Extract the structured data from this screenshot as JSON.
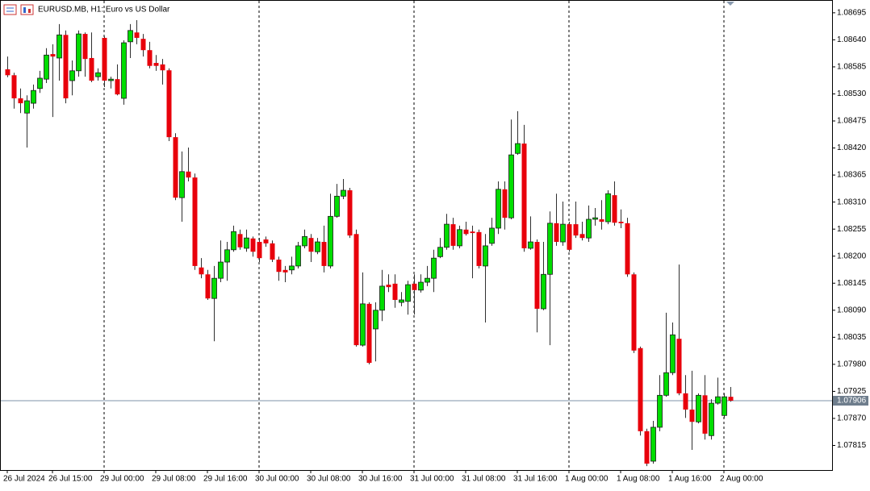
{
  "chart_data": {
    "type": "candlestick",
    "title": "EURUSD.MB, H1:  Euro vs US Dollar",
    "bull_color": "#00dd00",
    "bear_color": "#e8000b",
    "wick_color": "#303030",
    "period_separators": true,
    "open": [
      1.0858,
      1.08568,
      1.08521,
      1.08491,
      1.08511,
      1.08541,
      1.0856,
      1.08611,
      1.08603,
      1.0865,
      1.08557,
      1.08577,
      1.08652,
      1.08603,
      1.08565,
      1.08644,
      1.08557,
      1.0856,
      1.08521,
      1.08636,
      1.08655,
      1.08642,
      1.08619,
      1.08593,
      1.0859,
      1.08578,
      1.08442,
      1.08319,
      1.08372,
      1.0836,
      1.08177,
      1.08163,
      1.08114,
      1.08155,
      1.08188,
      1.08213,
      1.08245,
      1.08216,
      1.08236,
      1.08229,
      1.08234,
      1.08226,
      1.08193,
      1.08172,
      1.08172,
      1.0818,
      1.08221,
      1.08237,
      1.08209,
      1.08229,
      1.0818,
      1.08281,
      1.08322,
      1.08334,
      1.08245,
      1.08019,
      1.08103,
      1.08052,
      1.0809,
      1.08142,
      1.08144,
      1.08106,
      1.08108,
      1.08144,
      1.08131,
      1.08147,
      1.08155,
      1.08199,
      1.08218,
      1.08265,
      1.08221,
      1.08254,
      1.0825,
      1.08249,
      1.0818,
      1.08226,
      1.08257,
      1.08336,
      1.08278,
      1.08409,
      1.08429,
      1.08216,
      1.08229,
      1.08093,
      1.08163,
      1.08267,
      1.08229,
      1.08265,
      1.08265,
      1.08245,
      1.08237,
      1.08275,
      1.08275,
      1.0827,
      1.08324,
      1.0827,
      1.08267,
      1.08163,
      1.08013,
      1.07844,
      1.07783,
      1.07852,
      1.07917,
      1.07963,
      1.08032,
      1.07921,
      1.07888,
      1.07863,
      1.07917,
      1.07835,
      1.07901,
      1.07876,
      1.07914
    ],
    "high": [
      1.08606,
      1.08573,
      1.08541,
      1.08527,
      1.08549,
      1.08577,
      1.08623,
      1.08631,
      1.08672,
      1.08659,
      1.08598,
      1.08659,
      1.08655,
      1.08655,
      1.08582,
      1.08647,
      1.08565,
      1.0859,
      1.08639,
      1.08672,
      1.0868,
      1.08652,
      1.08636,
      1.08609,
      1.08601,
      1.08582,
      1.0845,
      1.08413,
      1.08421,
      1.08368,
      1.08196,
      1.08172,
      1.0818,
      1.08232,
      1.08229,
      1.08262,
      1.08254,
      1.08254,
      1.0824,
      1.08237,
      1.0824,
      1.08232,
      1.08199,
      1.0818,
      1.08199,
      1.08229,
      1.08254,
      1.08245,
      1.08237,
      1.08262,
      1.08327,
      1.08347,
      1.08357,
      1.08339,
      1.08254,
      1.08167,
      1.08106,
      1.08106,
      1.08172,
      1.08163,
      1.08163,
      1.08127,
      1.0815,
      1.08163,
      1.08163,
      1.0818,
      1.08213,
      1.08237,
      1.08286,
      1.08278,
      1.08262,
      1.0827,
      1.08262,
      1.08254,
      1.08245,
      1.08278,
      1.08352,
      1.08352,
      1.08478,
      1.08495,
      1.08467,
      1.08281,
      1.08234,
      1.08229,
      1.08291,
      1.08327,
      1.08311,
      1.0827,
      1.08311,
      1.0827,
      1.08303,
      1.08298,
      1.08314,
      1.08334,
      1.08352,
      1.08295,
      1.08278,
      1.08167,
      1.08016,
      1.07849,
      1.07865,
      1.07958,
      1.08085,
      1.08065,
      1.08183,
      1.07958,
      1.07967,
      1.07921,
      1.07958,
      1.07909,
      1.07953,
      1.07921,
      1.07934
    ],
    "low": [
      1.08564,
      1.085,
      1.08491,
      1.08421,
      1.085,
      1.08532,
      1.08552,
      1.08483,
      1.08557,
      1.08511,
      1.08527,
      1.08565,
      1.08565,
      1.08554,
      1.08557,
      1.08544,
      1.08541,
      1.08527,
      1.08508,
      1.08603,
      1.08631,
      1.08606,
      1.08582,
      1.08577,
      1.08549,
      1.08434,
      1.08314,
      1.0827,
      1.08352,
      1.08172,
      1.08155,
      1.08111,
      1.08027,
      1.08147,
      1.0815,
      1.08209,
      1.08213,
      1.08209,
      1.08199,
      1.08188,
      1.08219,
      1.08188,
      1.0815,
      1.08147,
      1.08163,
      1.08175,
      1.08216,
      1.08188,
      1.08204,
      1.08167,
      1.08175,
      1.08278,
      1.08316,
      1.08237,
      1.08016,
      1.08016,
      1.0798,
      1.07986,
      1.08068,
      1.08127,
      1.08095,
      1.08098,
      1.08081,
      1.08081,
      1.08126,
      1.08139,
      1.08127,
      1.08196,
      1.08213,
      1.08213,
      1.08216,
      1.08242,
      1.08155,
      1.08175,
      1.08065,
      1.08221,
      1.08245,
      1.08254,
      1.08275,
      1.08406,
      1.08209,
      1.08213,
      1.08045,
      1.0809,
      1.08019,
      1.08221,
      1.08221,
      1.08209,
      1.08237,
      1.08232,
      1.08229,
      1.08262,
      1.08254,
      1.08265,
      1.08262,
      1.08257,
      1.08158,
      1.08003,
      1.07835,
      1.07773,
      1.07778,
      1.07844,
      1.07914,
      1.07958,
      1.07917,
      1.07871,
      1.07806,
      1.0786,
      1.07827,
      1.07827,
      1.07898,
      1.07871,
      1.07904
    ],
    "close": [
      1.08568,
      1.08521,
      1.08511,
      1.08516,
      1.08537,
      1.08562,
      1.08609,
      1.08606,
      1.0865,
      1.08521,
      1.08577,
      1.08652,
      1.08601,
      1.08557,
      1.08573,
      1.08557,
      1.0856,
      1.08529,
      1.08634,
      1.08659,
      1.08644,
      1.08619,
      1.08587,
      1.08587,
      1.08578,
      1.08442,
      1.08319,
      1.08372,
      1.0836,
      1.0818,
      1.08163,
      1.08114,
      1.08155,
      1.08188,
      1.08213,
      1.0825,
      1.08218,
      1.08237,
      1.08209,
      1.08196,
      1.08226,
      1.08193,
      1.08168,
      1.08167,
      1.0818,
      1.08221,
      1.0824,
      1.08209,
      1.08229,
      1.0818,
      1.08281,
      1.08322,
      1.08334,
      1.08242,
      1.08019,
      1.08103,
      1.07983,
      1.0809,
      1.08139,
      1.08137,
      1.08111,
      1.08111,
      1.08142,
      1.08131,
      1.08147,
      1.08155,
      1.08196,
      1.08218,
      1.08265,
      1.08221,
      1.08254,
      1.08245,
      1.08247,
      1.0818,
      1.08221,
      1.08257,
      1.08336,
      1.08278,
      1.08406,
      1.08429,
      1.08216,
      1.08229,
      1.08093,
      1.08163,
      1.08267,
      1.08229,
      1.08265,
      1.08213,
      1.08242,
      1.08237,
      1.08275,
      1.08278,
      1.0827,
      1.08327,
      1.08268,
      1.08267,
      1.08163,
      1.08008,
      1.07844,
      1.07778,
      1.07852,
      1.07917,
      1.07963,
      1.0804,
      1.07921,
      1.07888,
      1.07863,
      1.07917,
      1.07839,
      1.07901,
      1.07914,
      1.07914,
      1.07906
    ],
    "bid_price": 1.07906,
    "ylim": [
      1.07765,
      1.08721
    ],
    "yticks": [
      1.08695,
      {
        "value": 1.0864,
        "label": "1.08640"
      },
      1.08585,
      {
        "value": 1.0853,
        "label": "1.08530"
      },
      1.08475,
      {
        "value": 1.0842,
        "label": "1.08420"
      },
      1.08365,
      {
        "value": 1.0831,
        "label": "1.08310"
      },
      1.08255,
      {
        "value": 1.082,
        "label": "1.08200"
      },
      1.08145,
      {
        "value": 1.0809,
        "label": "1.08090"
      },
      1.08035,
      {
        "value": 1.0798,
        "label": "1.07980"
      },
      1.07925,
      {
        "value": 1.0787,
        "label": "1.07870"
      },
      1.07815
    ],
    "xticks": [
      {
        "value": 0,
        "label": "26 Jul 2024"
      },
      {
        "value": 7,
        "label": "26 Jul 15:00"
      },
      {
        "value": 15,
        "label": "29 Jul 00:00"
      },
      {
        "value": 23,
        "label": "29 Jul 08:00"
      },
      {
        "value": 31,
        "label": "29 Jul 16:00"
      },
      {
        "value": 39,
        "label": "30 Jul 00:00"
      },
      {
        "value": 47,
        "label": "30 Jul 08:00"
      },
      {
        "value": 55,
        "label": "30 Jul 16:00"
      },
      {
        "value": 63,
        "label": "31 Jul 00:00"
      },
      {
        "value": 71,
        "label": "31 Jul 08:00"
      },
      {
        "value": 79,
        "label": "31 Jul 16:00"
      },
      {
        "value": 87,
        "label": "1 Aug 00:00"
      },
      {
        "value": 95,
        "label": "1 Aug 08:00"
      },
      {
        "value": 103,
        "label": "1 Aug 16:00"
      },
      {
        "value": 111,
        "label": "2 Aug 00:00"
      }
    ]
  }
}
